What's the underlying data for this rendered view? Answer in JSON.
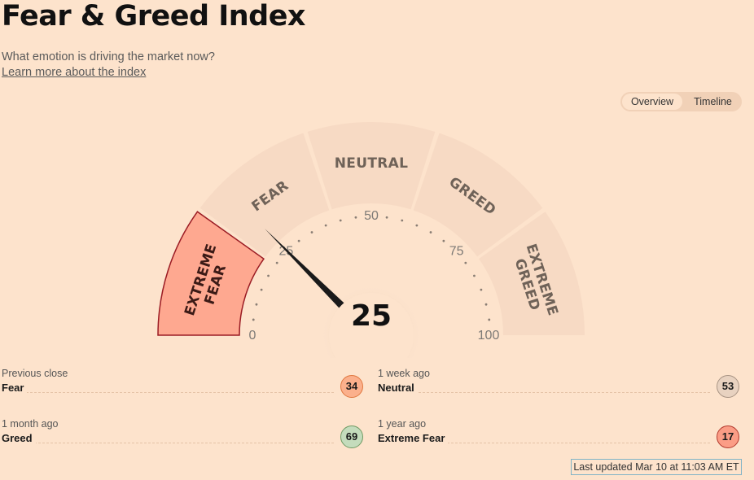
{
  "header": {
    "title": "Fear & Greed Index",
    "subtitle": "What emotion is driving the market now?",
    "learn_link": "Learn more about the index"
  },
  "view_toggle": {
    "options": [
      "Overview",
      "Timeline"
    ],
    "selected": "Overview"
  },
  "gauge": {
    "segments": [
      {
        "lines": [
          "EXTREME",
          "FEAR"
        ],
        "active": true
      },
      {
        "lines": [
          "FEAR"
        ],
        "active": false
      },
      {
        "lines": [
          "NEUTRAL"
        ],
        "active": false
      },
      {
        "lines": [
          "GREED"
        ],
        "active": false
      },
      {
        "lines": [
          "EXTREME",
          "GREED"
        ],
        "active": false
      }
    ],
    "scale_labels": [
      "0",
      "25",
      "50",
      "75",
      "100"
    ],
    "value": 25,
    "display_value": "25",
    "colors": {
      "active_segment": "#fea890",
      "inactive_segment": "#f7dac4",
      "needle": "#1a1a1a"
    }
  },
  "stats": [
    {
      "when": "Previous close",
      "rating": "Fear",
      "value": "34",
      "color": "#fbb08c"
    },
    {
      "when": "1 week ago",
      "rating": "Neutral",
      "value": "53",
      "color": "#e8d2c0"
    },
    {
      "when": "1 month ago",
      "rating": "Greed",
      "value": "69",
      "color": "#c4dcbc"
    },
    {
      "when": "1 year ago",
      "rating": "Extreme Fear",
      "value": "17",
      "color": "#fb9d86"
    }
  ],
  "footer": {
    "last_updated": "Last updated Mar 10 at 11:03 AM ET"
  }
}
